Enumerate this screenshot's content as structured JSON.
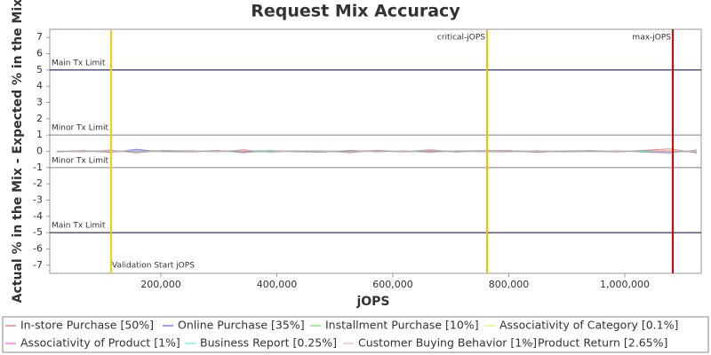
{
  "chart_data": {
    "type": "line",
    "title": "Request Mix Accuracy",
    "x_label": "jOPS",
    "y_label": "Actual % in the Mix - Expected % in the Mix",
    "xlim": [
      8400,
      1131800
    ],
    "ylim": [
      -7.5,
      7.5
    ],
    "xticks": [
      {
        "value": 200000,
        "label": "200,000"
      },
      {
        "value": 400000,
        "label": "400,000"
      },
      {
        "value": 600000,
        "label": "600,000"
      },
      {
        "value": 800000,
        "label": "800,000"
      },
      {
        "value": 1000000,
        "label": "1,000,000"
      }
    ],
    "yticks": [
      -7,
      -6,
      -5,
      -4,
      -3,
      -2,
      -1,
      0,
      1,
      2,
      3,
      4,
      5,
      6,
      7
    ],
    "limit_lines": [
      {
        "label": "Main Tx Limit",
        "value": 5,
        "color": "#000040"
      },
      {
        "label": "Minor Tx Limit",
        "value": 1,
        "color": "#808080"
      },
      {
        "label": "Minor Tx Limit",
        "value": -1,
        "color": "#808080"
      },
      {
        "label": "Main Tx Limit",
        "value": -5,
        "color": "#000040"
      }
    ],
    "markers": [
      {
        "label": "Validation Start jOPS",
        "value": 114200,
        "color": "#f0d000"
      },
      {
        "label": "critical-jOPS",
        "value": 762500,
        "color": "#f0c000"
      },
      {
        "label": "max-jOPS",
        "value": 1082800,
        "color": "#e00000"
      }
    ],
    "x": [
      20000,
      66000,
      112000,
      158000,
      204000,
      250000,
      296000,
      342000,
      388000,
      434000,
      480000,
      526000,
      572000,
      618000,
      664000,
      710000,
      756000,
      802000,
      848000,
      894000,
      940000,
      986000,
      1032000,
      1078000,
      1124000
    ],
    "series": [
      {
        "name": "In-store Purchase [50%]",
        "color": "#f08080",
        "values": [
          0.02,
          -0.05,
          0.08,
          -0.1,
          0.05,
          0.03,
          -0.04,
          0.1,
          -0.06,
          0.02,
          0.04,
          -0.08,
          0.06,
          -0.02,
          0.09,
          -0.05,
          0.03,
          0.05,
          -0.07,
          0.02,
          0.04,
          -0.03,
          0.06,
          0.15,
          -0.1
        ]
      },
      {
        "name": "Online Purchase [35%]",
        "color": "#8080f0",
        "values": [
          -0.03,
          0.04,
          -0.06,
          0.12,
          -0.04,
          -0.02,
          0.05,
          -0.08,
          0.04,
          -0.03,
          -0.05,
          0.06,
          -0.04,
          0.03,
          -0.07,
          0.04,
          -0.02,
          -0.04,
          0.05,
          -0.03,
          -0.02,
          0.04,
          -0.05,
          -0.1,
          0.08
        ]
      },
      {
        "name": "Installment Purchase [10%]",
        "color": "#80f080",
        "values": [
          0.01,
          -0.02,
          0.03,
          -0.04,
          0.02,
          0.06,
          -0.03,
          0.02,
          0.04,
          -0.05,
          0.02,
          0.03,
          -0.04,
          0.05,
          -0.02,
          0.03,
          0.04,
          -0.03,
          0.02,
          -0.04,
          0.05,
          -0.02,
          0.03,
          -0.05,
          0.04
        ]
      },
      {
        "name": "Associativity of Category [0.1%]",
        "color": "#f0f080",
        "values": [
          0.0,
          0.01,
          -0.01,
          0.02,
          -0.01,
          0.0,
          0.01,
          -0.02,
          0.01,
          0.0,
          -0.01,
          0.01,
          0.0,
          -0.01,
          0.02,
          0.0,
          -0.01,
          0.01,
          0.0,
          -0.02,
          0.01,
          0.0,
          -0.01,
          0.01,
          0.0
        ]
      },
      {
        "name": "Associativity of Product [1%]",
        "color": "#f080f0",
        "values": [
          -0.01,
          0.03,
          -0.02,
          0.01,
          0.04,
          -0.03,
          0.02,
          -0.01,
          -0.03,
          0.02,
          0.01,
          -0.02,
          0.03,
          -0.01,
          0.02,
          0.01,
          -0.03,
          0.02,
          0.01,
          -0.02,
          0.03,
          -0.01,
          0.02,
          -0.03,
          0.01
        ]
      },
      {
        "name": "Business Report [0.25%]",
        "color": "#80f0f0",
        "values": [
          0.01,
          -0.01,
          0.02,
          0.0,
          -0.02,
          0.01,
          0.0,
          0.01,
          -0.01,
          0.02,
          -0.01,
          0.0,
          0.01,
          -0.02,
          0.0,
          0.01,
          0.02,
          -0.01,
          0.0,
          0.01,
          -0.01,
          0.02,
          0.0,
          -0.01,
          0.01
        ]
      },
      {
        "name": "Customer Buying Behavior [1%]",
        "color": "#f0c0c0",
        "values": [
          0.03,
          -0.02,
          0.01,
          0.04,
          -0.03,
          0.02,
          -0.01,
          0.03,
          0.02,
          -0.04,
          0.03,
          0.01,
          -0.02,
          0.04,
          -0.03,
          0.02,
          0.01,
          -0.02,
          0.03,
          0.02,
          -0.04,
          0.01,
          0.03,
          -0.02,
          0.02
        ]
      },
      {
        "name": "Product Return [2.65%]",
        "color": "#a0a0a0",
        "values": [
          -0.02,
          0.03,
          -0.04,
          0.02,
          0.01,
          -0.03,
          0.04,
          -0.02,
          0.03,
          0.01,
          -0.04,
          0.02,
          0.03,
          -0.03,
          0.01,
          -0.02,
          0.04,
          0.02,
          -0.03,
          0.01,
          0.02,
          -0.04,
          0.03,
          0.02,
          -0.05
        ]
      }
    ]
  }
}
